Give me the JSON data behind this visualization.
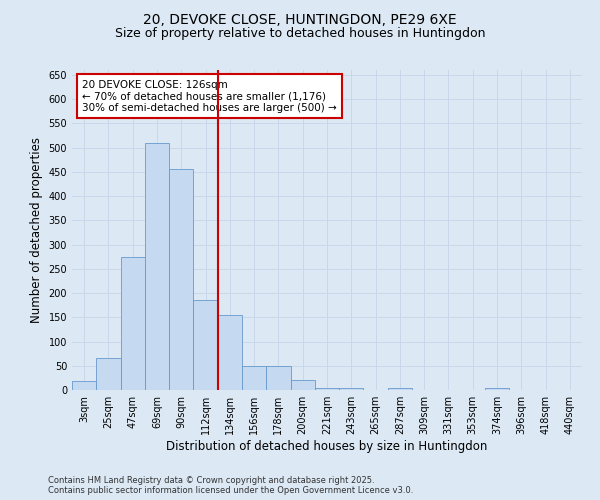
{
  "title_line1": "20, DEVOKE CLOSE, HUNTINGDON, PE29 6XE",
  "title_line2": "Size of property relative to detached houses in Huntingdon",
  "xlabel": "Distribution of detached houses by size in Huntingdon",
  "ylabel": "Number of detached properties",
  "footer_line1": "Contains HM Land Registry data © Crown copyright and database right 2025.",
  "footer_line2": "Contains public sector information licensed under the Open Government Licence v3.0.",
  "bin_labels": [
    "3sqm",
    "25sqm",
    "47sqm",
    "69sqm",
    "90sqm",
    "112sqm",
    "134sqm",
    "156sqm",
    "178sqm",
    "200sqm",
    "221sqm",
    "243sqm",
    "265sqm",
    "287sqm",
    "309sqm",
    "331sqm",
    "353sqm",
    "374sqm",
    "396sqm",
    "418sqm",
    "440sqm"
  ],
  "bar_values": [
    18,
    65,
    275,
    510,
    455,
    185,
    155,
    50,
    50,
    20,
    5,
    5,
    0,
    5,
    0,
    0,
    0,
    5,
    0,
    0,
    0
  ],
  "bar_color": "#c5d9f0",
  "bar_edge_color": "#6699cc",
  "grid_color": "#c8d8ea",
  "background_color": "#dce8f4",
  "vline_x": 5.5,
  "vline_color": "#cc0000",
  "annotation_text": "20 DEVOKE CLOSE: 126sqm\n← 70% of detached houses are smaller (1,176)\n30% of semi-detached houses are larger (500) →",
  "annotation_box_color": "white",
  "annotation_box_edge": "#cc0000",
  "ylim": [
    0,
    660
  ],
  "yticks": [
    0,
    50,
    100,
    150,
    200,
    250,
    300,
    350,
    400,
    450,
    500,
    550,
    600,
    650
  ],
  "title_fontsize": 10,
  "subtitle_fontsize": 9,
  "axis_label_fontsize": 8.5,
  "tick_fontsize": 7,
  "annotation_fontsize": 7.5,
  "footer_fontsize": 6
}
